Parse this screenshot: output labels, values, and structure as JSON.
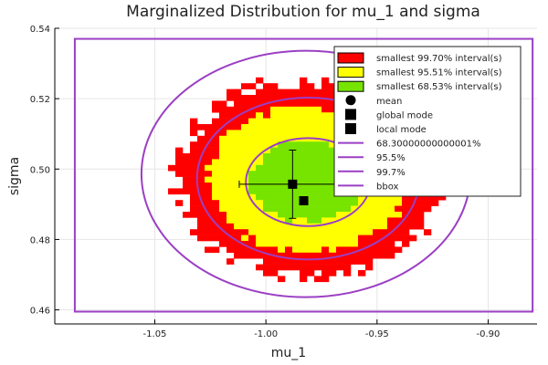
{
  "chart_data": {
    "type": "heatmap",
    "title": "Marginalized Distribution for mu_1 and sigma",
    "xlabel": "mu_1",
    "ylabel": "sigma",
    "xlim": [
      -1.095,
      -0.878
    ],
    "ylim": [
      0.456,
      0.54
    ],
    "x_ticks": [
      "-1.05",
      "-1.00",
      "-0.95",
      "-0.90"
    ],
    "x_tick_values": [
      -1.05,
      -1.0,
      -0.95,
      -0.9
    ],
    "y_ticks": [
      "0.46",
      "0.48",
      "0.50",
      "0.52",
      "0.54"
    ],
    "y_tick_values": [
      0.46,
      0.48,
      0.5,
      0.52,
      0.54
    ],
    "grid": true,
    "legend_position": "top-right",
    "colors": {
      "interval_997": "#ff0000",
      "interval_9551": "#ffff00",
      "interval_6853": "#77e400",
      "contour": "#9b3fc4",
      "marker": "#000000"
    },
    "legend": [
      {
        "label": "smallest 99.70% interval(s)",
        "kind": "patch",
        "color": "#ff0000"
      },
      {
        "label": "smallest 95.51% interval(s)",
        "kind": "patch",
        "color": "#ffff00"
      },
      {
        "label": "smallest 68.53% interval(s)",
        "kind": "patch",
        "color": "#77e400"
      },
      {
        "label": "mean",
        "kind": "circle",
        "color": "#000000"
      },
      {
        "label": "global mode",
        "kind": "square",
        "color": "#000000"
      },
      {
        "label": "local mode",
        "kind": "square",
        "color": "#000000"
      },
      {
        "label": "68.30000000000001%",
        "kind": "line",
        "color": "#9b3fc4"
      },
      {
        "label": "95.5%",
        "kind": "line",
        "color": "#9b3fc4"
      },
      {
        "label": "99.7%",
        "kind": "line",
        "color": "#9b3fc4"
      },
      {
        "label": "bbox",
        "kind": "line",
        "color": "#9b3fc4"
      }
    ],
    "mean": {
      "x": -0.988,
      "y": 0.4957,
      "x_err": 0.024,
      "y_err": 0.0097
    },
    "global_mode": {
      "x": -0.983,
      "y": 0.491
    },
    "local_mode": {
      "x": -0.983,
      "y": 0.491
    },
    "ellipses": [
      {
        "name": "68.30000000000001%",
        "cx": -0.981,
        "cy": 0.4963,
        "rx": 0.028,
        "ry": 0.0125
      },
      {
        "name": "95.5%",
        "cx": -0.981,
        "cy": 0.4973,
        "rx": 0.05,
        "ry": 0.023
      },
      {
        "name": "99.7%",
        "cx": -0.982,
        "cy": 0.4986,
        "rx": 0.074,
        "ry": 0.035
      }
    ],
    "bbox": {
      "x0": -1.086,
      "x1": -0.88,
      "y0": 0.4595,
      "y1": 0.537
    },
    "regions": [
      {
        "name": "smallest 99.70% interval(s)",
        "color": "#ff0000",
        "cx": -0.981,
        "cy": 0.4975,
        "rx": 0.06,
        "ry": 0.028
      },
      {
        "name": "smallest 95.51% interval(s)",
        "color": "#ffff00",
        "cx": -0.981,
        "cy": 0.497,
        "rx": 0.045,
        "ry": 0.0205
      },
      {
        "name": "smallest 68.53% interval(s)",
        "color": "#77e400",
        "cx": -0.981,
        "cy": 0.4965,
        "rx": 0.026,
        "ry": 0.0115
      }
    ]
  }
}
